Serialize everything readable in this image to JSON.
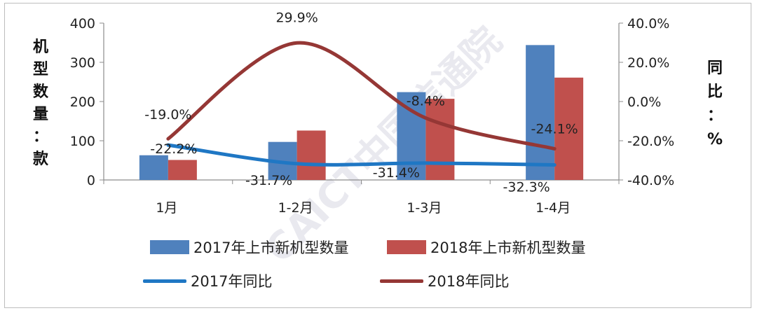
{
  "chart_data": {
    "type": "bar+line",
    "categories": [
      "1月",
      "1-2月",
      "1-3月",
      "1-4月"
    ],
    "bar_series": [
      {
        "name": "2017年上市新机型数量",
        "color": "#4f81bd",
        "values": [
          63,
          97,
          224,
          344
        ]
      },
      {
        "name": "2018年上市新机型数量",
        "color": "#c0504d",
        "values": [
          51,
          126,
          207,
          261
        ]
      }
    ],
    "line_series": [
      {
        "name": "2017年同比",
        "color": "#1f77c4",
        "values": [
          -22.2,
          -31.7,
          -31.4,
          -32.3
        ],
        "labels": [
          "-22.2%",
          "-31.7%",
          "-31.4%",
          "-32.3%"
        ]
      },
      {
        "name": "2018年同比",
        "color": "#953735",
        "values": [
          -19.0,
          29.9,
          -8.4,
          -24.1
        ],
        "labels": [
          "-19.0%",
          "29.9%",
          "-8.4%",
          "-24.1%"
        ]
      }
    ],
    "ylabel_left": "机型数量：款",
    "ylabel_right": "同比：%",
    "ylim_left": [
      0,
      400
    ],
    "ylim_right": [
      -40,
      40
    ],
    "yticks_left": [
      "0",
      "100",
      "200",
      "300",
      "400"
    ],
    "yticks_right": [
      "-40.0%",
      "-20.0%",
      "0.0%",
      "20.0%",
      "40.0%"
    ],
    "grid": false,
    "legend_position": "bottom",
    "watermark": "CAICT中国信通院"
  }
}
